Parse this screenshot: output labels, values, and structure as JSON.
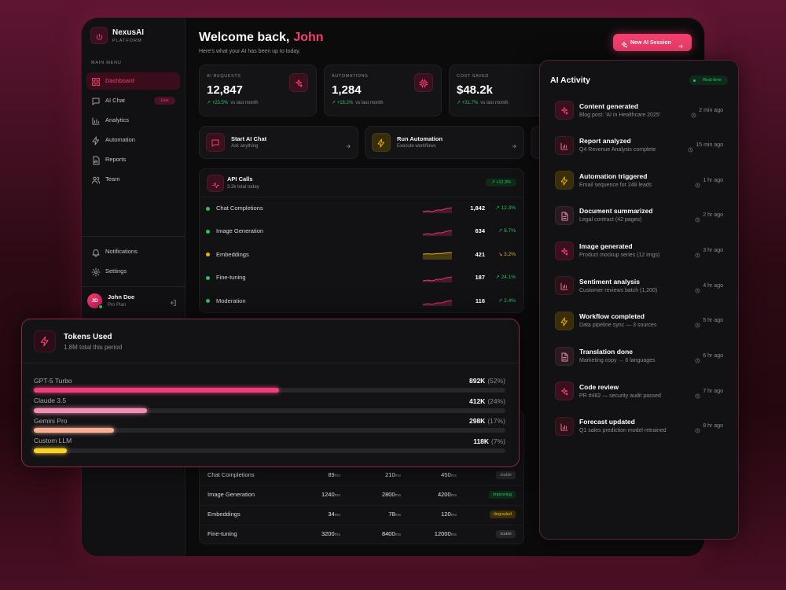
{
  "sidebar": {
    "brand": "NexusAI",
    "brand_sub": "PLATFORM",
    "section": "MAIN MENU",
    "nav": [
      {
        "label": "Dashboard"
      },
      {
        "label": "AI Chat",
        "badge": "Live"
      },
      {
        "label": "Analytics"
      },
      {
        "label": "Automation"
      },
      {
        "label": "Reports"
      },
      {
        "label": "Team"
      }
    ],
    "bottom_nav": [
      "Notifications",
      "Settings"
    ],
    "user": {
      "initials": "JD",
      "name": "John Doe",
      "plan": "Pro Plan"
    }
  },
  "header": {
    "greeting": "Welcome back,",
    "name": "John",
    "subtitle": "Here's what your AI has been up to today.",
    "button": "New AI Session"
  },
  "stats": [
    {
      "label": "AI REQUESTS",
      "value": "12,847",
      "change": "↗ +23.5%",
      "note": "vs last month"
    },
    {
      "label": "AUTOMATIONS",
      "value": "1,284",
      "change": "↗ +18.2%",
      "note": "vs last month"
    },
    {
      "label": "COST SAVED",
      "value": "$48.2k",
      "change": "↗ +31.7%",
      "note": "vs last month"
    }
  ],
  "actions": [
    {
      "title": "Start AI Chat",
      "sub": "Ask anything"
    },
    {
      "title": "Run Automation",
      "sub": "Execute workflows"
    }
  ],
  "api_calls": {
    "title": "API Calls",
    "sub": "3.2k total today",
    "change": "↗ +12.3%",
    "rows": [
      {
        "name": "Chat Completions",
        "count": "1,842",
        "change": "↗ 12.3%"
      },
      {
        "name": "Image Generation",
        "count": "634",
        "change": "↗ 8.7%"
      },
      {
        "name": "Embeddings",
        "count": "421",
        "change": "↘ 3.2%"
      },
      {
        "name": "Fine-tuning",
        "count": "187",
        "change": "↗ 24.1%"
      },
      {
        "name": "Moderation",
        "count": "116",
        "change": "↗ 2.4%"
      }
    ]
  },
  "latency": {
    "unit": "ms",
    "rows": [
      {
        "name": "Chat Completions",
        "cells": [
          "89",
          "210",
          "450"
        ],
        "status": "stable"
      },
      {
        "name": "Image Generation",
        "cells": [
          "1240",
          "2800",
          "4200"
        ],
        "status": "improving"
      },
      {
        "name": "Embeddings",
        "cells": [
          "34",
          "78",
          "120"
        ],
        "status": "degraded"
      },
      {
        "name": "Fine-tuning",
        "cells": [
          "3200",
          "8400",
          "12000"
        ],
        "status": "stable"
      }
    ]
  },
  "tokens": {
    "title": "Tokens Used",
    "sub": "1.8M total this period",
    "rows": [
      {
        "name": "GPT-5 Turbo",
        "amount": "892K",
        "share": 52,
        "share_label": "(52%)",
        "color": "#ec3f7c"
      },
      {
        "name": "Claude 3.5",
        "amount": "412K",
        "share": 24,
        "share_label": "(24%)",
        "color": "#f28db4"
      },
      {
        "name": "Gemini Pro",
        "amount": "298K",
        "share": 17,
        "share_label": "(17%)",
        "color": "#fbae96"
      },
      {
        "name": "Custom LLM",
        "amount": "118K",
        "share": 7,
        "share_label": "(7%)",
        "color": "#fbd12d"
      }
    ]
  },
  "activity": {
    "title": "AI Activity",
    "badge": "Real-time",
    "items": [
      {
        "title": "Content generated",
        "desc": "Blog post: 'AI in Healthcare 2025'",
        "time": "2 min ago"
      },
      {
        "title": "Report analyzed",
        "desc": "Q4 Revenue Analysis complete",
        "time": "15 min ago"
      },
      {
        "title": "Automation triggered",
        "desc": "Email sequence for 248 leads",
        "time": "1 hr ago"
      },
      {
        "title": "Document summarized",
        "desc": "Legal contract (42 pages)",
        "time": "2 hr ago"
      },
      {
        "title": "Image generated",
        "desc": "Product mockup series (12 imgs)",
        "time": "3 hr ago"
      },
      {
        "title": "Sentiment analysis",
        "desc": "Customer reviews batch (1,200)",
        "time": "4 hr ago"
      },
      {
        "title": "Workflow completed",
        "desc": "Data pipeline sync — 3 sources",
        "time": "5 hr ago"
      },
      {
        "title": "Translation done",
        "desc": "Marketing copy → 6 languages",
        "time": "6 hr ago"
      },
      {
        "title": "Code review",
        "desc": "PR #482 — security audit passed",
        "time": "7 hr ago"
      },
      {
        "title": "Forecast updated",
        "desc": "Q1 sales prediction model retrained",
        "time": "8 hr ago"
      }
    ]
  }
}
